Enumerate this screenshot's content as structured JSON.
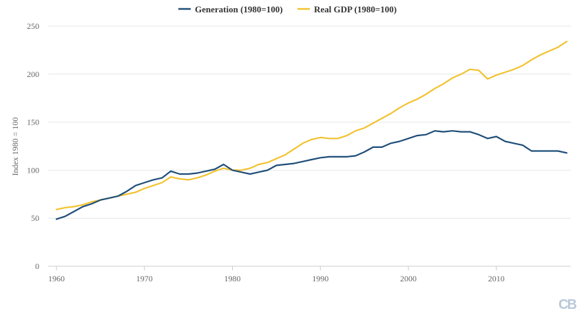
{
  "colors": {
    "generation": "#1f4e79",
    "gdp": "#f2c230",
    "grid": "#e6e6e6",
    "axis": "#cccccc",
    "logo": "#b9c9d8"
  },
  "logo_text": "CB",
  "chart_data": {
    "type": "line",
    "ylabel": "Index 1980 = 100",
    "xlabel": "",
    "xlim": [
      1960,
      2018
    ],
    "ylim": [
      0,
      250
    ],
    "x_ticks": [
      1960,
      1970,
      1980,
      1990,
      2000,
      2010
    ],
    "y_ticks": [
      0,
      50,
      100,
      150,
      200,
      250
    ],
    "grid": "horizontal",
    "legend_position": "top-center",
    "x": [
      1960,
      1961,
      1962,
      1963,
      1964,
      1965,
      1966,
      1967,
      1968,
      1969,
      1970,
      1971,
      1972,
      1973,
      1974,
      1975,
      1976,
      1977,
      1978,
      1979,
      1980,
      1981,
      1982,
      1983,
      1984,
      1985,
      1986,
      1987,
      1988,
      1989,
      1990,
      1991,
      1992,
      1993,
      1994,
      1995,
      1996,
      1997,
      1998,
      1999,
      2000,
      2001,
      2002,
      2003,
      2004,
      2005,
      2006,
      2007,
      2008,
      2009,
      2010,
      2011,
      2012,
      2013,
      2014,
      2015,
      2016,
      2017,
      2018
    ],
    "series": [
      {
        "name": "Generation (1980=100)",
        "values": [
          49,
          52,
          57,
          62,
          65,
          69,
          71,
          73,
          78,
          84,
          87,
          90,
          92,
          99,
          96,
          96,
          97,
          99,
          101,
          106,
          100,
          98,
          96,
          98,
          100,
          105,
          106,
          107,
          109,
          111,
          113,
          114,
          114,
          114,
          115,
          119,
          124,
          124,
          128,
          130,
          133,
          136,
          137,
          141,
          140,
          141,
          140,
          140,
          137,
          133,
          135,
          130,
          128,
          126,
          120,
          120,
          120,
          120,
          118
        ]
      },
      {
        "name": "Real GDP (1980=100)",
        "values": [
          59,
          61,
          62,
          64,
          67,
          69,
          71,
          73,
          75,
          77,
          81,
          84,
          87,
          93,
          91,
          90,
          92,
          95,
          99,
          102,
          100,
          100,
          102,
          106,
          108,
          112,
          116,
          122,
          128,
          132,
          134,
          133,
          133,
          136,
          141,
          144,
          149,
          154,
          159,
          165,
          170,
          174,
          179,
          185,
          190,
          196,
          200,
          205,
          204,
          195,
          199,
          202,
          205,
          209,
          215,
          220,
          224,
          228,
          234
        ]
      }
    ]
  }
}
